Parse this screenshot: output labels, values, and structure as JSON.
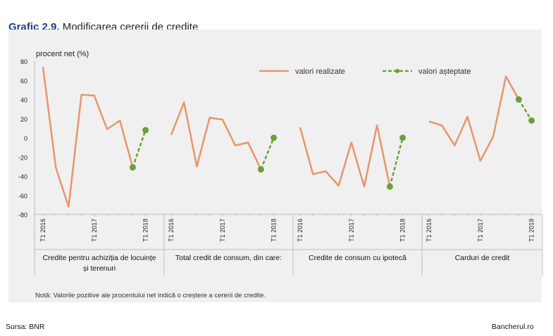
{
  "title": {
    "number": "Grafic 2.9.",
    "text": "Modificarea cererii de credite"
  },
  "note": "Notă: Valorile pozitive ale procentului net indică o creștere a cererii de credite.",
  "source": "Sursa: BNR",
  "watermark": "Bancherul.ro",
  "colors": {
    "realized": "#e8956a",
    "expected": "#6e9e3a",
    "title_accent": "#1f3c88"
  },
  "chart_data": {
    "type": "line",
    "ylabel": "procent net (%)",
    "ylim": [
      -80,
      80
    ],
    "yticks": [
      "80",
      "60",
      "40",
      "20",
      "0",
      "-20",
      "-40",
      "-60",
      "-80"
    ],
    "legend": {
      "realized": "valori realizate",
      "expected": "valori așteptate",
      "placement": "top-right"
    },
    "groups": [
      {
        "label_lines": [
          "Credite pentru achiziția de locuințe",
          "și terenuri"
        ],
        "tick_labels": [
          "T1 2016",
          "T1 2017",
          "T1 2018"
        ],
        "realized": [
          74,
          -31,
          -72,
          45,
          44,
          9,
          18,
          -31
        ],
        "expected_from": -31,
        "expected": 8
      },
      {
        "label_lines": [
          "Total credit de consum, din care:"
        ],
        "tick_labels": [
          "T1 2016",
          "T1 2017",
          "T1 2018"
        ],
        "realized": [
          3,
          37,
          -30,
          21,
          19,
          -8,
          -5,
          -33
        ],
        "expected_from": -33,
        "expected": 0
      },
      {
        "label_lines": [
          "Credite de consum cu ipotecă"
        ],
        "tick_labels": [
          "T1 2016",
          "T1 2017",
          "T1 2018"
        ],
        "realized": [
          11,
          -38,
          -35,
          -50,
          -5,
          -51,
          13,
          -51
        ],
        "expected_from": -51,
        "expected": 0
      },
      {
        "label_lines": [
          "Carduri de credit"
        ],
        "tick_labels": [
          "T1 2016",
          "T1 2017",
          "T1 2018"
        ],
        "realized": [
          17,
          13,
          -8,
          22,
          -24,
          1,
          64,
          40
        ],
        "expected_from": 40,
        "expected": 18
      }
    ],
    "grid": false
  }
}
